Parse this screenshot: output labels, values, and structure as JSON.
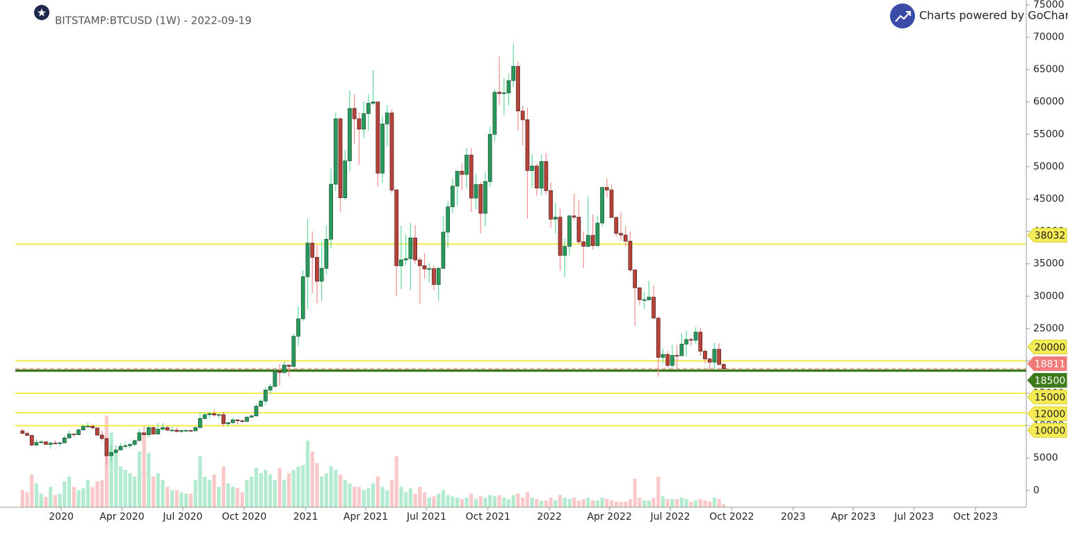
{
  "chart_data": {
    "type": "candlestick",
    "title": "BITSTAMP:BTCUSD (1W) - 2022-09-19",
    "brand": "Charts powered by GoCharting",
    "up_color": "#2a9a5c",
    "down_color": "#b8433b",
    "up_wick_color": "#5fd89c",
    "down_wick_color": "#f08c8c",
    "up_volume_color": "#b3ebd0",
    "down_volume_color": "#f9c9c9",
    "categories": [
      null,
      null,
      null,
      null,
      null,
      null,
      null,
      null,
      null,
      null,
      null,
      null,
      null,
      null,
      null,
      null,
      null,
      null,
      null,
      null,
      null,
      null,
      null,
      null,
      null,
      null,
      null,
      null,
      null,
      null,
      null,
      null,
      null,
      null,
      null,
      null,
      null,
      null,
      null,
      null,
      null,
      null,
      null,
      null,
      null,
      null,
      null,
      null,
      null,
      null,
      null,
      null,
      null,
      null,
      null,
      null,
      null,
      null,
      null,
      null,
      null,
      null,
      null,
      null,
      null,
      null,
      null,
      null,
      null,
      null,
      null,
      null,
      null,
      null,
      null,
      null,
      null,
      null,
      null,
      null,
      null,
      null,
      null,
      null,
      null,
      null,
      null,
      null,
      null,
      null,
      null,
      null,
      null,
      null,
      null,
      null,
      null,
      null,
      null,
      null,
      null,
      null,
      null,
      null,
      null,
      null,
      null,
      null,
      null,
      null,
      null,
      null,
      null,
      null,
      null,
      null,
      null,
      null,
      null,
      null,
      null,
      null,
      null,
      null,
      null,
      null,
      null,
      null,
      null,
      null,
      null,
      null,
      null,
      null,
      null,
      null,
      null,
      null,
      null,
      null,
      null,
      null,
      null,
      null,
      null,
      null,
      null,
      null,
      null,
      null,
      null
    ],
    "open": [
      9200,
      8800,
      8500,
      7000,
      7400,
      7500,
      7100,
      7300,
      7250,
      7350,
      8100,
      8700,
      8600,
      9350,
      9900,
      9900,
      9650,
      8550,
      8000,
      5350,
      5850,
      6250,
      6800,
      6900,
      7100,
      7700,
      8900,
      8600,
      9700,
      8700,
      9450,
      9700,
      9300,
      9300,
      9100,
      9250,
      9250,
      9200,
      9700,
      11100,
      11700,
      11850,
      11650,
      11700,
      10300,
      10450,
      10900,
      10750,
      10650,
      11300,
      11500,
      13000,
      13800,
      15500,
      16050,
      18400,
      18200,
      19350,
      19150,
      23800,
      26500,
      33000,
      38200,
      36000,
      32300,
      34300,
      38800,
      47300,
      57400,
      45200,
      50900,
      59000,
      57400,
      55800,
      58200,
      59800,
      60000,
      49000,
      56600,
      58300,
      46400,
      34700,
      35600,
      35800,
      39000,
      35600,
      34700,
      34200,
      34250,
      31800,
      34300,
      39900,
      43800,
      47000,
      49300,
      48800,
      51800,
      45150,
      47250,
      42800,
      47700,
      55000,
      61500,
      61300,
      61400,
      63300,
      65500,
      58600,
      57250,
      49400,
      50100,
      46700,
      50800,
      46300,
      41900,
      42200,
      36300,
      37700,
      42400,
      42200,
      38400,
      37700,
      39400,
      37800,
      41300,
      46800,
      46400,
      42150,
      39700,
      39450,
      38500,
      34050,
      31300,
      29450,
      29450,
      29850,
      26600,
      20550,
      21000,
      19300,
      20850,
      20800,
      22600,
      23300,
      23200,
      24450,
      21500,
      20300,
      19800,
      21800,
      19450
    ],
    "high": [
      9500,
      9100,
      8500,
      7850,
      7750,
      7500,
      7500,
      7700,
      7500,
      8450,
      9200,
      8750,
      9600,
      10150,
      10500,
      10150,
      9700,
      9200,
      8150,
      6950,
      6950,
      7300,
      7450,
      7300,
      7800,
      9450,
      10000,
      9950,
      9850,
      10400,
      10400,
      10000,
      9800,
      9750,
      9300,
      9450,
      9350,
      9900,
      12100,
      12050,
      12250,
      12450,
      11800,
      12100,
      10650,
      11200,
      10950,
      10950,
      11550,
      11700,
      13350,
      14100,
      15950,
      16500,
      18800,
      19500,
      19900,
      19400,
      24200,
      28400,
      34000,
      41950,
      40000,
      37900,
      38500,
      40950,
      49700,
      58350,
      57500,
      52600,
      61800,
      61200,
      58400,
      60100,
      61200,
      64900,
      60000,
      57900,
      59500,
      58900,
      46600,
      40900,
      39500,
      41300,
      41000,
      36000,
      36600,
      35100,
      34700,
      34500,
      42400,
      44700,
      48150,
      49400,
      50500,
      52900,
      52900,
      48850,
      47600,
      49200,
      56200,
      62000,
      67000,
      63700,
      64300,
      69000,
      66300,
      59400,
      59100,
      51950,
      50500,
      51900,
      52100,
      47600,
      44500,
      43500,
      38900,
      42600,
      45850,
      44800,
      40000,
      45400,
      42600,
      42400,
      46900,
      48200,
      47200,
      42400,
      42950,
      40800,
      40000,
      34200,
      31350,
      30650,
      32400,
      31650,
      26900,
      21900,
      21500,
      22500,
      22500,
      24300,
      24650,
      23650,
      25200,
      25100,
      21800,
      20500,
      22800,
      22700,
      19700
    ],
    "low": [
      8700,
      8450,
      6800,
      6850,
      7200,
      7050,
      6430,
      7100,
      6850,
      7300,
      8050,
      8250,
      8550,
      9150,
      9700,
      9500,
      8400,
      7700,
      3850,
      4450,
      5700,
      6150,
      6450,
      6500,
      6800,
      7600,
      8500,
      8200,
      8650,
      8650,
      9250,
      9200,
      9150,
      8950,
      8900,
      9100,
      9050,
      9150,
      9600,
      10950,
      11150,
      11350,
      11150,
      9900,
      9900,
      10300,
      10150,
      10400,
      10550,
      11250,
      11400,
      12950,
      13250,
      14850,
      16000,
      16200,
      18100,
      17600,
      19000,
      22350,
      26200,
      28000,
      30400,
      28900,
      29250,
      33400,
      37400,
      46200,
      43000,
      44900,
      49300,
      53600,
      50300,
      54500,
      55600,
      59500,
      47000,
      47500,
      53100,
      46000,
      30000,
      31100,
      34850,
      31000,
      35000,
      28800,
      32700,
      32100,
      31000,
      29300,
      34200,
      37550,
      42850,
      43950,
      46400,
      46600,
      43000,
      43400,
      39700,
      40800,
      46900,
      53900,
      59500,
      58000,
      59400,
      62300,
      55600,
      53300,
      42000,
      46800,
      45500,
      45600,
      45700,
      40600,
      39700,
      34000,
      32950,
      36300,
      41700,
      38000,
      34300,
      37500,
      37200,
      37600,
      40900,
      45200,
      42100,
      39200,
      38550,
      37700,
      33700,
      25400,
      28650,
      28000,
      29300,
      26600,
      17600,
      19600,
      18950,
      19000,
      18950,
      20750,
      20700,
      22400,
      22700,
      20800,
      19600,
      18700,
      18650,
      19300,
      18600
    ],
    "close": [
      8800,
      8500,
      7000,
      7400,
      7500,
      7100,
      7300,
      7250,
      7350,
      8100,
      8700,
      8600,
      9350,
      9900,
      9900,
      9650,
      8550,
      8000,
      5350,
      5850,
      6250,
      6800,
      6900,
      7100,
      7700,
      8900,
      8600,
      9700,
      8700,
      9450,
      9700,
      9300,
      9300,
      9100,
      9250,
      9250,
      9200,
      9700,
      11100,
      11700,
      11850,
      11650,
      11700,
      10300,
      10450,
      10900,
      10750,
      10650,
      11300,
      11500,
      13000,
      13800,
      15500,
      16050,
      18400,
      18200,
      19350,
      19150,
      23800,
      26500,
      33000,
      38200,
      36000,
      32300,
      34300,
      38800,
      47300,
      57400,
      45200,
      50900,
      59000,
      57400,
      55800,
      58200,
      59800,
      60000,
      49000,
      56600,
      58300,
      46400,
      34700,
      35600,
      35800,
      39000,
      35600,
      34700,
      34200,
      34250,
      31800,
      34300,
      39900,
      43800,
      47000,
      49300,
      48800,
      51800,
      45150,
      47250,
      42800,
      47700,
      55000,
      61500,
      61300,
      61400,
      63300,
      65500,
      58600,
      57250,
      49400,
      50100,
      46700,
      50800,
      46300,
      41900,
      42200,
      36300,
      37700,
      42400,
      42200,
      38400,
      37700,
      39400,
      37800,
      41300,
      46800,
      46400,
      42150,
      39700,
      39450,
      38500,
      34050,
      31300,
      29450,
      29450,
      29850,
      26600,
      20550,
      21000,
      19300,
      20850,
      20800,
      22600,
      23300,
      23200,
      24450,
      21500,
      20300,
      19800,
      21800,
      19450,
      18800
    ],
    "volume": [
      25,
      22,
      48,
      35,
      20,
      15,
      30,
      18,
      20,
      38,
      45,
      30,
      25,
      28,
      40,
      30,
      38,
      40,
      135,
      110,
      80,
      60,
      55,
      50,
      45,
      82,
      110,
      80,
      45,
      50,
      40,
      30,
      25,
      25,
      22,
      20,
      20,
      40,
      75,
      45,
      40,
      48,
      30,
      60,
      35,
      30,
      28,
      22,
      40,
      45,
      58,
      50,
      55,
      48,
      40,
      58,
      40,
      50,
      55,
      60,
      62,
      98,
      82,
      65,
      45,
      50,
      60,
      55,
      48,
      40,
      35,
      30,
      30,
      25,
      28,
      35,
      45,
      30,
      25,
      40,
      75,
      30,
      22,
      28,
      20,
      30,
      22,
      14,
      16,
      20,
      25,
      18,
      16,
      14,
      12,
      14,
      20,
      12,
      16,
      14,
      18,
      16,
      18,
      14,
      12,
      18,
      20,
      14,
      22,
      14,
      12,
      10,
      10,
      14,
      10,
      18,
      14,
      12,
      14,
      10,
      12,
      14,
      10,
      10,
      14,
      12,
      10,
      8,
      8,
      8,
      12,
      42,
      14,
      10,
      10,
      14,
      45,
      16,
      12,
      12,
      12,
      14,
      12,
      8,
      10,
      12,
      10,
      8,
      14,
      12,
      4
    ],
    "ylim": [
      -2600,
      75750
    ],
    "yticks": [
      0,
      5000,
      10000,
      15000,
      20000,
      25000,
      30000,
      35000,
      40000,
      45000,
      50000,
      55000,
      60000,
      65000,
      70000,
      75000
    ],
    "xticks": [
      {
        "value": 8.29,
        "label": "2020"
      },
      {
        "value": 21.29,
        "label": "Apr 2020"
      },
      {
        "value": 34.29,
        "label": "Jul 2020"
      },
      {
        "value": 47.43,
        "label": "Oct 2020"
      },
      {
        "value": 60.57,
        "label": "2021"
      },
      {
        "value": 73.43,
        "label": "Apr 2021"
      },
      {
        "value": 86.43,
        "label": "Jul 2021"
      },
      {
        "value": 99.57,
        "label": "Oct 2021"
      },
      {
        "value": 112.71,
        "label": "2022"
      },
      {
        "value": 125.57,
        "label": "Apr 2022"
      },
      {
        "value": 138.57,
        "label": "Jul 2022"
      },
      {
        "value": 151.71,
        "label": "Oct 2022"
      },
      {
        "value": 164.86,
        "label": "2023"
      },
      {
        "value": 177.71,
        "label": "Apr 2023"
      },
      {
        "value": 190.71,
        "label": "Jul 2023"
      },
      {
        "value": 203.86,
        "label": "Oct 2023"
      }
    ],
    "levels": [
      {
        "value": 38032,
        "color": "#f3ea4a",
        "label_color": "#f5ec55",
        "text_color": "#222",
        "dashed": false
      },
      {
        "value": 20000,
        "color": "#f3ea4a",
        "label_color": "#f5ec55",
        "text_color": "#222",
        "dashed": false
      },
      {
        "value": 18811,
        "color": "#f2a3a3",
        "label_color": "#f07b78",
        "text_color": "#fff",
        "dashed": true
      },
      {
        "value": 18500,
        "color": "#3d7a1c",
        "label_color": "#3d7a1c",
        "text_color": "#fff",
        "dashed": false
      },
      {
        "value": 15000,
        "color": "#f3ea4a",
        "label_color": "#f5ec55",
        "text_color": "#222",
        "dashed": false
      },
      {
        "value": 12000,
        "color": "#f3ea4a",
        "label_color": "#f5ec55",
        "text_color": "#222",
        "dashed": false
      },
      {
        "value": 10000,
        "color": "#f3ea4a",
        "label_color": "#f5ec55",
        "text_color": "#222",
        "dashed": false
      }
    ]
  }
}
